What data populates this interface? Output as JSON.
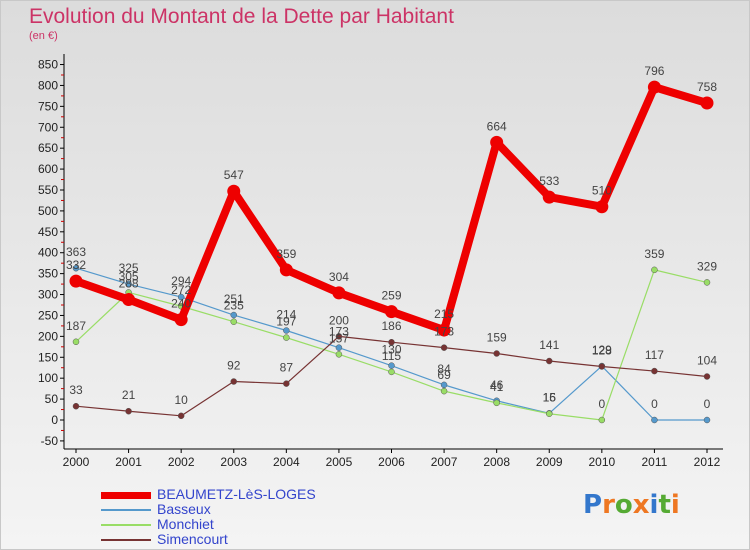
{
  "chart_data": {
    "type": "line",
    "title": "Evolution du Montant de la Dette par Habitant",
    "subtitle": "(en €)",
    "x": [
      "2000",
      "2001",
      "2002",
      "2003",
      "2004",
      "2005",
      "2006",
      "2007",
      "2008",
      "2009",
      "2010",
      "2011",
      "2012"
    ],
    "yticks": [
      "-50",
      "0",
      "50",
      "100",
      "150",
      "200",
      "250",
      "300",
      "350",
      "400",
      "450",
      "500",
      "550",
      "600",
      "650",
      "700",
      "750",
      "800",
      "850"
    ],
    "ylim": [
      -50,
      850
    ],
    "grid": false,
    "legend_position": "bottom-left",
    "series": [
      {
        "name": "BEAUMETZ-LèS-LOGES",
        "color": "#ee0000",
        "values": [
          332,
          288,
          240,
          547,
          359,
          304,
          259,
          215,
          664,
          533,
          510,
          796,
          758
        ],
        "labels": [
          "332",
          "288",
          "240",
          "547",
          "359",
          "304",
          "259",
          "215",
          "664",
          "533",
          "510",
          "796",
          "758"
        ]
      },
      {
        "name": "Basseux",
        "color": "#5599cc",
        "values": [
          363,
          325,
          294,
          251,
          214,
          173,
          130,
          84,
          46,
          16,
          129,
          0,
          0
        ],
        "labels": [
          "363",
          "325",
          "294",
          "251",
          "214",
          "173",
          "130",
          "84",
          "46",
          "16",
          "129",
          "0",
          "0"
        ]
      },
      {
        "name": "Monchiet",
        "color": "#99dd66",
        "values": [
          187,
          305,
          272,
          235,
          197,
          157,
          115,
          69,
          41,
          15,
          0,
          359,
          329
        ],
        "labels": [
          "187",
          "305",
          "272",
          "235",
          "197",
          "157",
          "115",
          "69",
          "41",
          "15",
          "0",
          "359",
          "329"
        ]
      },
      {
        "name": "Simencourt",
        "color": "#773333",
        "values": [
          33,
          21,
          10,
          92,
          87,
          200,
          186,
          173,
          159,
          141,
          128,
          117,
          104
        ],
        "labels": [
          "33",
          "21",
          "10",
          "92",
          "87",
          "200",
          "186",
          "173",
          "159",
          "141",
          "128",
          "117",
          "104"
        ]
      }
    ]
  },
  "brand": {
    "letters": [
      "P",
      "r",
      "o",
      "x",
      "i",
      "t",
      "i"
    ],
    "colors": [
      "#3377cc",
      "#ee7722",
      "#55aa33",
      "#ee7722",
      "#3377cc",
      "#55aa33",
      "#ee7722"
    ]
  }
}
